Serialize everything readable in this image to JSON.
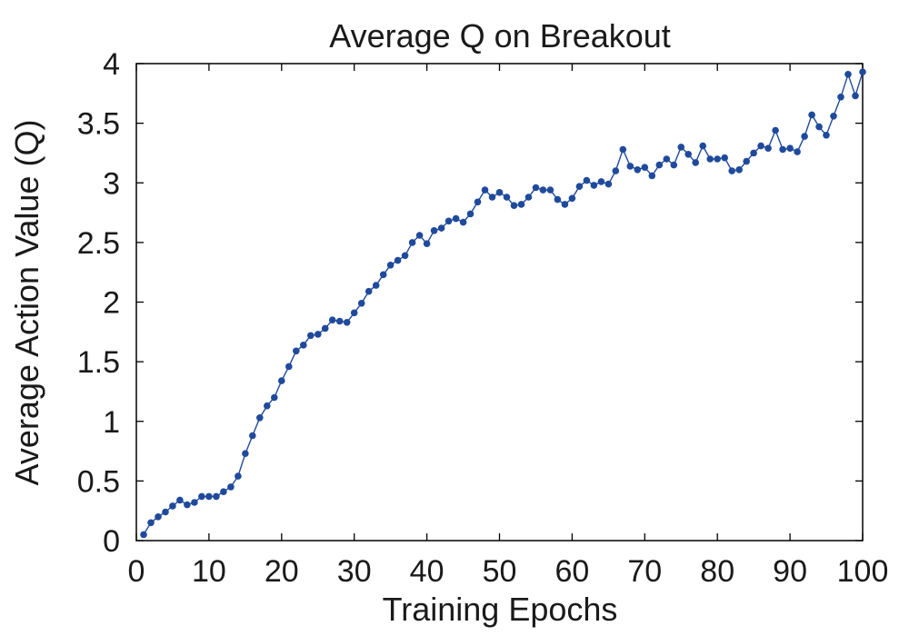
{
  "chart_data": {
    "type": "line",
    "title": "Average Q on Breakout",
    "xlabel": "Training Epochs",
    "ylabel": "Average Action Value (Q)",
    "xlim": [
      0,
      100
    ],
    "ylim": [
      0,
      4
    ],
    "xticks": [
      0,
      10,
      20,
      30,
      40,
      50,
      60,
      70,
      80,
      90,
      100
    ],
    "yticks": [
      0,
      0.5,
      1,
      1.5,
      2,
      2.5,
      3,
      3.5,
      4
    ],
    "grid": false,
    "legend": "none",
    "series_color": "#1f4a9c",
    "series": [
      {
        "x": [
          1,
          2,
          3,
          4,
          5,
          6,
          7,
          8,
          9,
          10,
          11,
          12,
          13,
          14,
          15,
          16,
          17,
          18,
          19,
          20,
          21,
          22,
          23,
          24,
          25,
          26,
          27,
          28,
          29,
          30,
          31,
          32,
          33,
          34,
          35,
          36,
          37,
          38,
          39,
          40,
          41,
          42,
          43,
          44,
          45,
          46,
          47,
          48,
          49,
          50,
          51,
          52,
          53,
          54,
          55,
          56,
          57,
          58,
          59,
          60,
          61,
          62,
          63,
          64,
          65,
          66,
          67,
          68,
          69,
          70,
          71,
          72,
          73,
          74,
          75,
          76,
          77,
          78,
          79,
          80,
          81,
          82,
          83,
          84,
          85,
          86,
          87,
          88,
          89,
          90,
          91,
          92,
          93,
          94,
          95,
          96,
          97,
          98,
          99,
          100
        ],
        "y": [
          0.05,
          0.15,
          0.2,
          0.24,
          0.29,
          0.34,
          0.3,
          0.32,
          0.37,
          0.37,
          0.37,
          0.41,
          0.45,
          0.54,
          0.73,
          0.88,
          1.03,
          1.13,
          1.2,
          1.34,
          1.46,
          1.59,
          1.64,
          1.72,
          1.73,
          1.78,
          1.85,
          1.84,
          1.83,
          1.91,
          1.99,
          2.09,
          2.14,
          2.23,
          2.31,
          2.35,
          2.39,
          2.5,
          2.56,
          2.49,
          2.6,
          2.62,
          2.68,
          2.7,
          2.67,
          2.74,
          2.84,
          2.94,
          2.88,
          2.92,
          2.88,
          2.81,
          2.82,
          2.88,
          2.96,
          2.94,
          2.94,
          2.86,
          2.82,
          2.87,
          2.97,
          3.02,
          2.98,
          3.01,
          2.99,
          3.1,
          3.28,
          3.14,
          3.11,
          3.13,
          3.06,
          3.15,
          3.2,
          3.15,
          3.3,
          3.24,
          3.17,
          3.31,
          3.2,
          3.2,
          3.21,
          3.1,
          3.11,
          3.18,
          3.25,
          3.31,
          3.29,
          3.44,
          3.28,
          3.29,
          3.26,
          3.39,
          3.57,
          3.47,
          3.4,
          3.56,
          3.72,
          3.91,
          3.73,
          3.93
        ]
      }
    ]
  }
}
